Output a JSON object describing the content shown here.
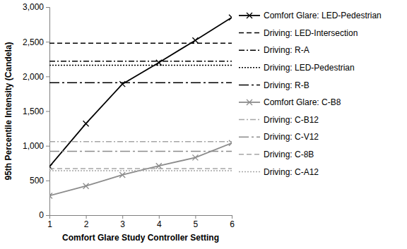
{
  "chart_data": {
    "type": "line",
    "x_label": "Comfort Glare Study Controller Setting",
    "y_label": "95th Percentile Intensity (Candela)",
    "x": [
      1,
      2,
      3,
      4,
      5,
      6
    ],
    "xlim": [
      1,
      6
    ],
    "xticks": [
      1,
      2,
      3,
      4,
      5,
      6
    ],
    "ylim": [
      0,
      3000
    ],
    "yticks": [
      0,
      500,
      {
        "value": 1000,
        "label": "1,000"
      },
      {
        "value": 1500,
        "label": "1,500"
      },
      {
        "value": 2000,
        "label": "2,000"
      },
      {
        "value": 2500,
        "label": "2,500"
      },
      {
        "value": 3000,
        "label": "3,000"
      }
    ],
    "grid": false,
    "legend": "right",
    "series": [
      {
        "name": "Comfort Glare: LED-Pedestrian",
        "color": "#000000",
        "line_style": "solid",
        "marker": "x",
        "values": [
          700,
          1320,
          1890,
          2200,
          2520,
          2850
        ]
      },
      {
        "name": "Driving: LED-Intersection",
        "color": "#000000",
        "line_style": "dashed",
        "marker": "none",
        "values": [
          2480,
          2480,
          2480,
          2480,
          2480,
          2480
        ]
      },
      {
        "name": "Driving: R-A",
        "color": "#000000",
        "line_style": "dashdot",
        "marker": "none",
        "values": [
          2220,
          2220,
          2220,
          2220,
          2220,
          2220
        ]
      },
      {
        "name": "Driving: LED-Pedestrian",
        "color": "#000000",
        "line_style": "dotted",
        "marker": "none",
        "values": [
          2160,
          2160,
          2160,
          2160,
          2160,
          2160
        ]
      },
      {
        "name": "Driving: R-B",
        "color": "#000000",
        "line_style": "longdashdot",
        "marker": "none",
        "values": [
          1910,
          1910,
          1910,
          1910,
          1910,
          1910
        ]
      },
      {
        "name": "Comfort Glare: C-B8",
        "color": "#8c8c8c",
        "line_style": "solid",
        "marker": "x",
        "values": [
          280,
          420,
          580,
          710,
          830,
          1040
        ]
      },
      {
        "name": "Driving: C-B12",
        "color": "#a6a6a6",
        "line_style": "dashdot",
        "marker": "none",
        "values": [
          1060,
          1060,
          1060,
          1060,
          1060,
          1060
        ]
      },
      {
        "name": "Driving: C-V12",
        "color": "#8c8c8c",
        "line_style": "longdashdot",
        "marker": "none",
        "values": [
          920,
          920,
          920,
          920,
          920,
          920
        ]
      },
      {
        "name": "Driving: C-8B",
        "color": "#a6a6a6",
        "line_style": "dashed",
        "marker": "none",
        "values": [
          670,
          670,
          670,
          670,
          670,
          670
        ]
      },
      {
        "name": "Driving: C-A12",
        "color": "#a6a6a6",
        "line_style": "dotted",
        "marker": "none",
        "values": [
          640,
          640,
          640,
          640,
          640,
          640
        ]
      }
    ]
  }
}
